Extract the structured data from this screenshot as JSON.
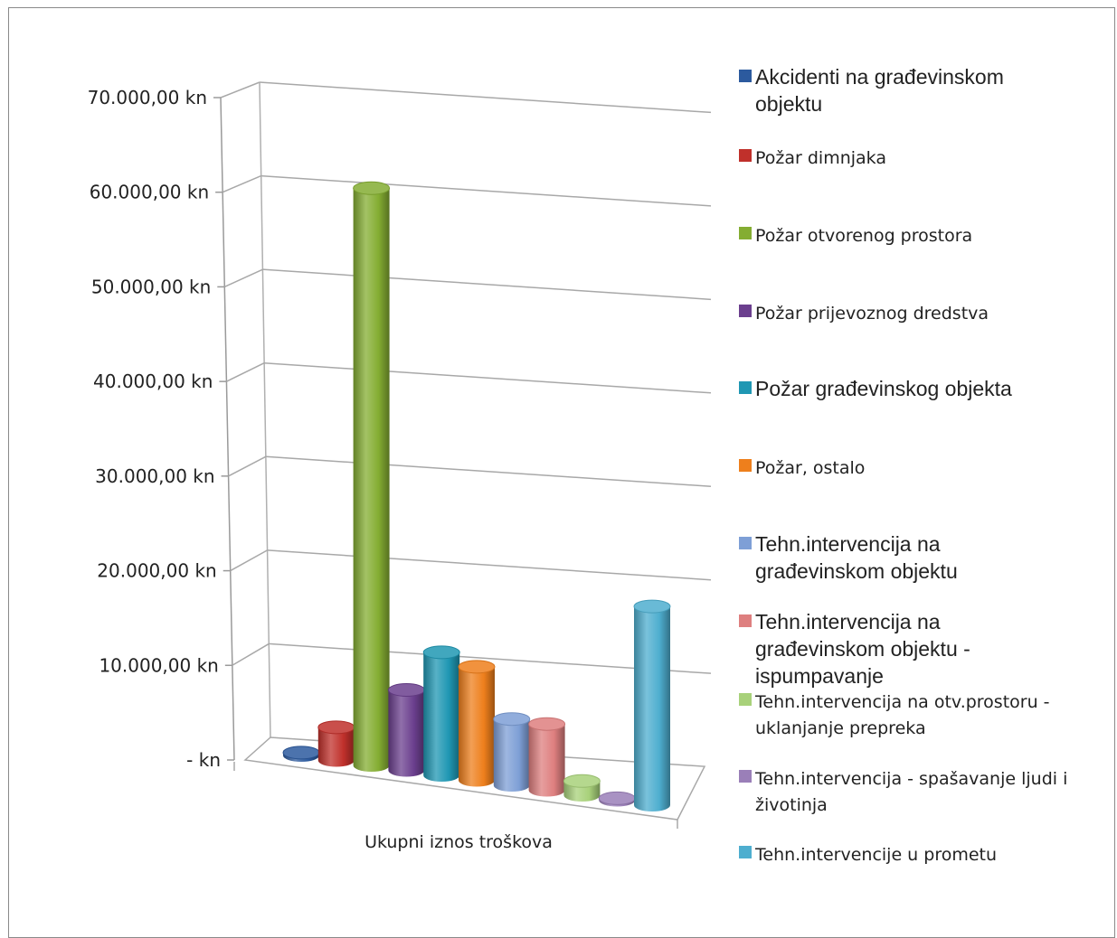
{
  "chart_data": {
    "type": "bar",
    "style": "3d-cylinder",
    "categories": [
      "Ukupni iznos troškova"
    ],
    "y_ticks": [
      "-   kn",
      "10.000,00 kn",
      "20.000,00 kn",
      "30.000,00 kn",
      "40.000,00 kn",
      "50.000,00 kn",
      "60.000,00 kn",
      "70.000,00 kn"
    ],
    "ylim": [
      0,
      70000
    ],
    "grid": true,
    "legend_position": "right",
    "series": [
      {
        "name": "Akcidenti na građevinskom objektu",
        "values": [
          300
        ],
        "color": "#2c5a9e",
        "legend_font": "big"
      },
      {
        "name": "Požar dimnjaka",
        "values": [
          3500
        ],
        "color": "#c0302b",
        "legend_font": "small"
      },
      {
        "name": "Požar otvorenog prostora",
        "values": [
          61000
        ],
        "color": "#84ad32",
        "legend_font": "small"
      },
      {
        "name": "Požar prijevoznog dredstva",
        "values": [
          8500
        ],
        "color": "#6b3f8e",
        "legend_font": "small"
      },
      {
        "name": "Požar građevinskog objekta",
        "values": [
          13000
        ],
        "color": "#1f97b3",
        "legend_font": "big"
      },
      {
        "name": "Požar, ostalo",
        "values": [
          12000
        ],
        "color": "#ee7f1c",
        "legend_font": "small"
      },
      {
        "name": "Tehn.intervencija na građevinskom objektu",
        "values": [
          7000
        ],
        "color": "#7e9fd6",
        "legend_font": "big"
      },
      {
        "name": "Tehn.intervencija na građevinskom objektu - ispumpavanje",
        "values": [
          7000
        ],
        "color": "#de7f7f",
        "legend_font": "big"
      },
      {
        "name": "Tehn.intervencija na otv.prostoru - uklanjanje prepreka",
        "values": [
          1500
        ],
        "color": "#a8d17a",
        "legend_font": "small"
      },
      {
        "name": "Tehn.intervencija - spašavanje ljudi i životinja",
        "values": [
          200
        ],
        "color": "#9a7fb8",
        "legend_font": "small"
      },
      {
        "name": "Tehn.intervencije u prometu",
        "values": [
          21000
        ],
        "color": "#4eaecf",
        "legend_font": "small"
      }
    ]
  }
}
